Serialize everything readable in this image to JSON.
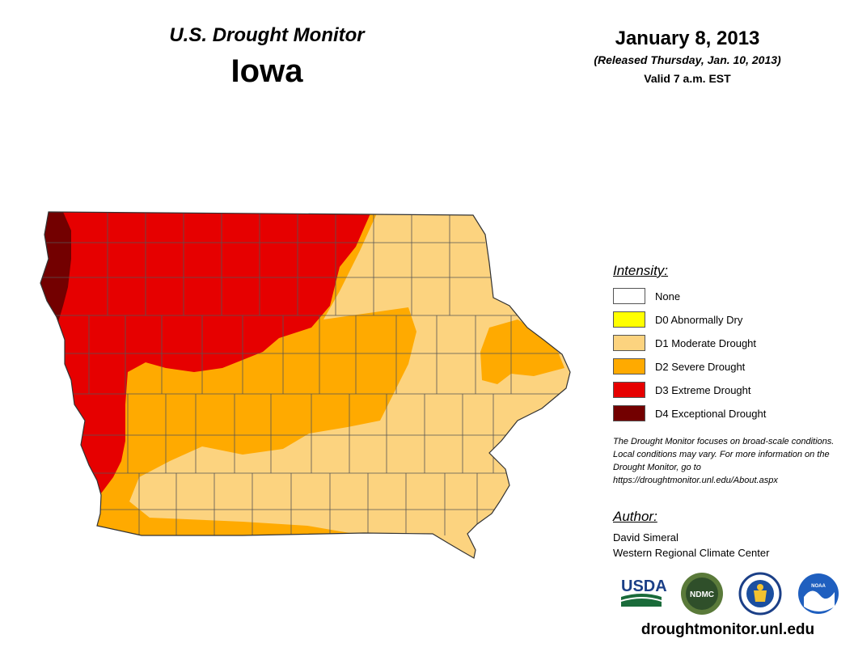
{
  "header": {
    "monitor_title": "U.S. Drought Monitor",
    "state": "Iowa",
    "date": "January 8, 2013",
    "released": "(Released Thursday, Jan. 10, 2013)",
    "valid": "Valid 7 a.m. EST"
  },
  "legend": {
    "title": "Intensity:",
    "items": [
      {
        "label": "None",
        "color": "#ffffff"
      },
      {
        "label": "D0 Abnormally Dry",
        "color": "#ffff00"
      },
      {
        "label": "D1 Moderate Drought",
        "color": "#fcd37f"
      },
      {
        "label": "D2 Severe Drought",
        "color": "#ffaa00"
      },
      {
        "label": "D3 Extreme Drought",
        "color": "#e60000"
      },
      {
        "label": "D4 Exceptional Drought",
        "color": "#730000"
      }
    ]
  },
  "note": "The Drought Monitor focuses on broad-scale conditions. Local conditions may vary. For more information on the Drought Monitor, go to https://droughtmonitor.unl.edu/About.aspx",
  "author": {
    "title": "Author:",
    "name": "David Simeral",
    "organization": "Western Regional Climate Center"
  },
  "logos": {
    "usda": "USDA",
    "ndmc": "NDMC",
    "noaa": "NOAA"
  },
  "site_url": "droughtmonitor.unl.edu"
}
